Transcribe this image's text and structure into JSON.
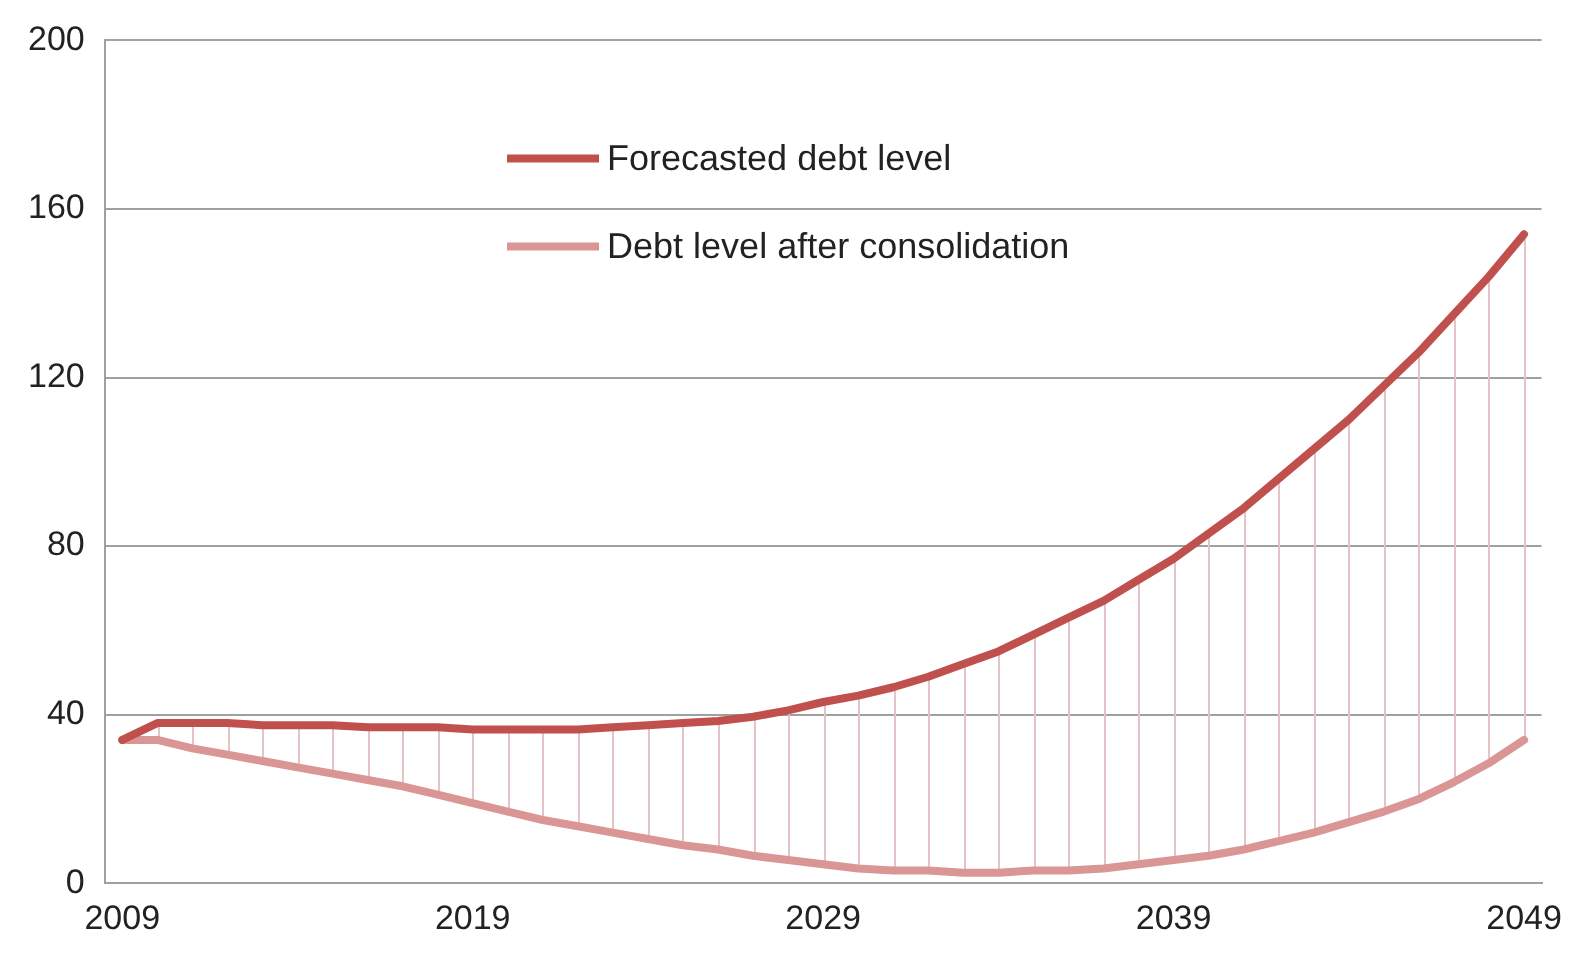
{
  "chart_data": {
    "type": "line",
    "categories": [
      "2009",
      null,
      null,
      null,
      null,
      null,
      null,
      null,
      null,
      null,
      "2019",
      null,
      null,
      null,
      null,
      null,
      null,
      null,
      null,
      null,
      "2029",
      null,
      null,
      null,
      null,
      null,
      null,
      null,
      null,
      null,
      "2039",
      null,
      null,
      null,
      null,
      null,
      null,
      null,
      null,
      null,
      "2049"
    ],
    "series": [
      {
        "name": "Forecasted debt level",
        "color": "#c0504d",
        "values": [
          34,
          38,
          38,
          38,
          37.5,
          37.5,
          37.5,
          37,
          37,
          37,
          36.5,
          36.5,
          36.5,
          36.5,
          37,
          37.5,
          38,
          38.5,
          39.5,
          41,
          43,
          44.5,
          46.5,
          49,
          52,
          55,
          59,
          63,
          67,
          72,
          77,
          83,
          89,
          96,
          103,
          110,
          118,
          126,
          135,
          144,
          154
        ],
        "errors": [
          [
            34,
            34
          ],
          [
            34,
            38
          ],
          [
            32,
            38
          ],
          [
            30.5,
            38
          ],
          [
            29,
            37.5
          ],
          [
            27.5,
            37.5
          ],
          [
            26,
            37.5
          ],
          [
            24.5,
            37
          ],
          [
            23,
            37
          ],
          [
            21,
            37
          ],
          [
            19,
            36.5
          ],
          [
            17,
            36.5
          ],
          [
            15,
            36.5
          ],
          [
            13.5,
            36.5
          ],
          [
            12,
            37
          ],
          [
            10.5,
            37.5
          ],
          [
            9,
            38
          ],
          [
            8,
            38.5
          ],
          [
            6.5,
            39.5
          ],
          [
            5.5,
            41
          ],
          [
            4.5,
            43
          ],
          [
            3.5,
            44.5
          ],
          [
            3,
            46.5
          ],
          [
            3,
            49
          ],
          [
            2.5,
            52
          ],
          [
            2.5,
            55
          ],
          [
            3,
            59
          ],
          [
            3,
            63
          ],
          [
            3.5,
            67
          ],
          [
            4.5,
            72
          ],
          [
            5.5,
            77
          ],
          [
            6.5,
            83
          ],
          [
            8,
            89
          ],
          [
            10,
            96
          ],
          [
            12,
            103
          ],
          [
            14.5,
            110
          ],
          [
            17,
            118
          ],
          [
            20,
            126
          ],
          [
            24,
            135
          ],
          [
            28.5,
            144
          ],
          [
            34,
            154
          ]
        ]
      },
      {
        "name": "Debt level after consolidation",
        "color": "#d99694",
        "values": [
          34,
          34,
          32,
          30.5,
          29,
          27.5,
          26,
          24.5,
          23,
          21,
          19,
          17,
          15,
          13.5,
          12,
          10.5,
          9,
          8,
          6.5,
          5.5,
          4.5,
          3.5,
          3,
          3,
          2.5,
          2.5,
          3,
          3,
          3.5,
          4.5,
          5.5,
          6.5,
          8,
          10,
          12,
          14.5,
          17,
          20,
          24,
          28.5,
          34
        ]
      }
    ],
    "ylim": [
      0,
      200
    ],
    "yticks": [
      0,
      40,
      80,
      120,
      160,
      200
    ],
    "grid": "y",
    "legend": "top",
    "marker": "none",
    "line_style": "solid"
  }
}
